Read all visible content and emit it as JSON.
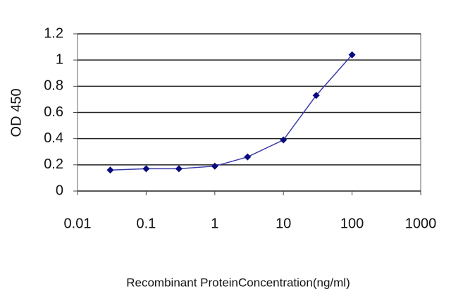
{
  "chart_data": {
    "type": "line",
    "x_label": "Recombinant ProteinConcentration(ng/ml)",
    "y_label": "OD 450",
    "x": [
      0.03,
      0.1,
      0.3,
      1,
      3,
      10,
      30,
      100
    ],
    "values": [
      0.16,
      0.17,
      0.17,
      0.19,
      0.26,
      0.39,
      0.73,
      1.04
    ],
    "color": "#3a3aa8",
    "marker_color": "#0a0a80",
    "xlog": true,
    "xlim": [
      0.01,
      1000
    ],
    "xticks": [
      0.01,
      0.1,
      1,
      10,
      100,
      1000
    ],
    "ylim": [
      0,
      1.2
    ],
    "yticks": [
      0,
      0.2,
      0.4,
      0.6,
      0.8,
      1,
      1.2
    ],
    "grid": true
  }
}
